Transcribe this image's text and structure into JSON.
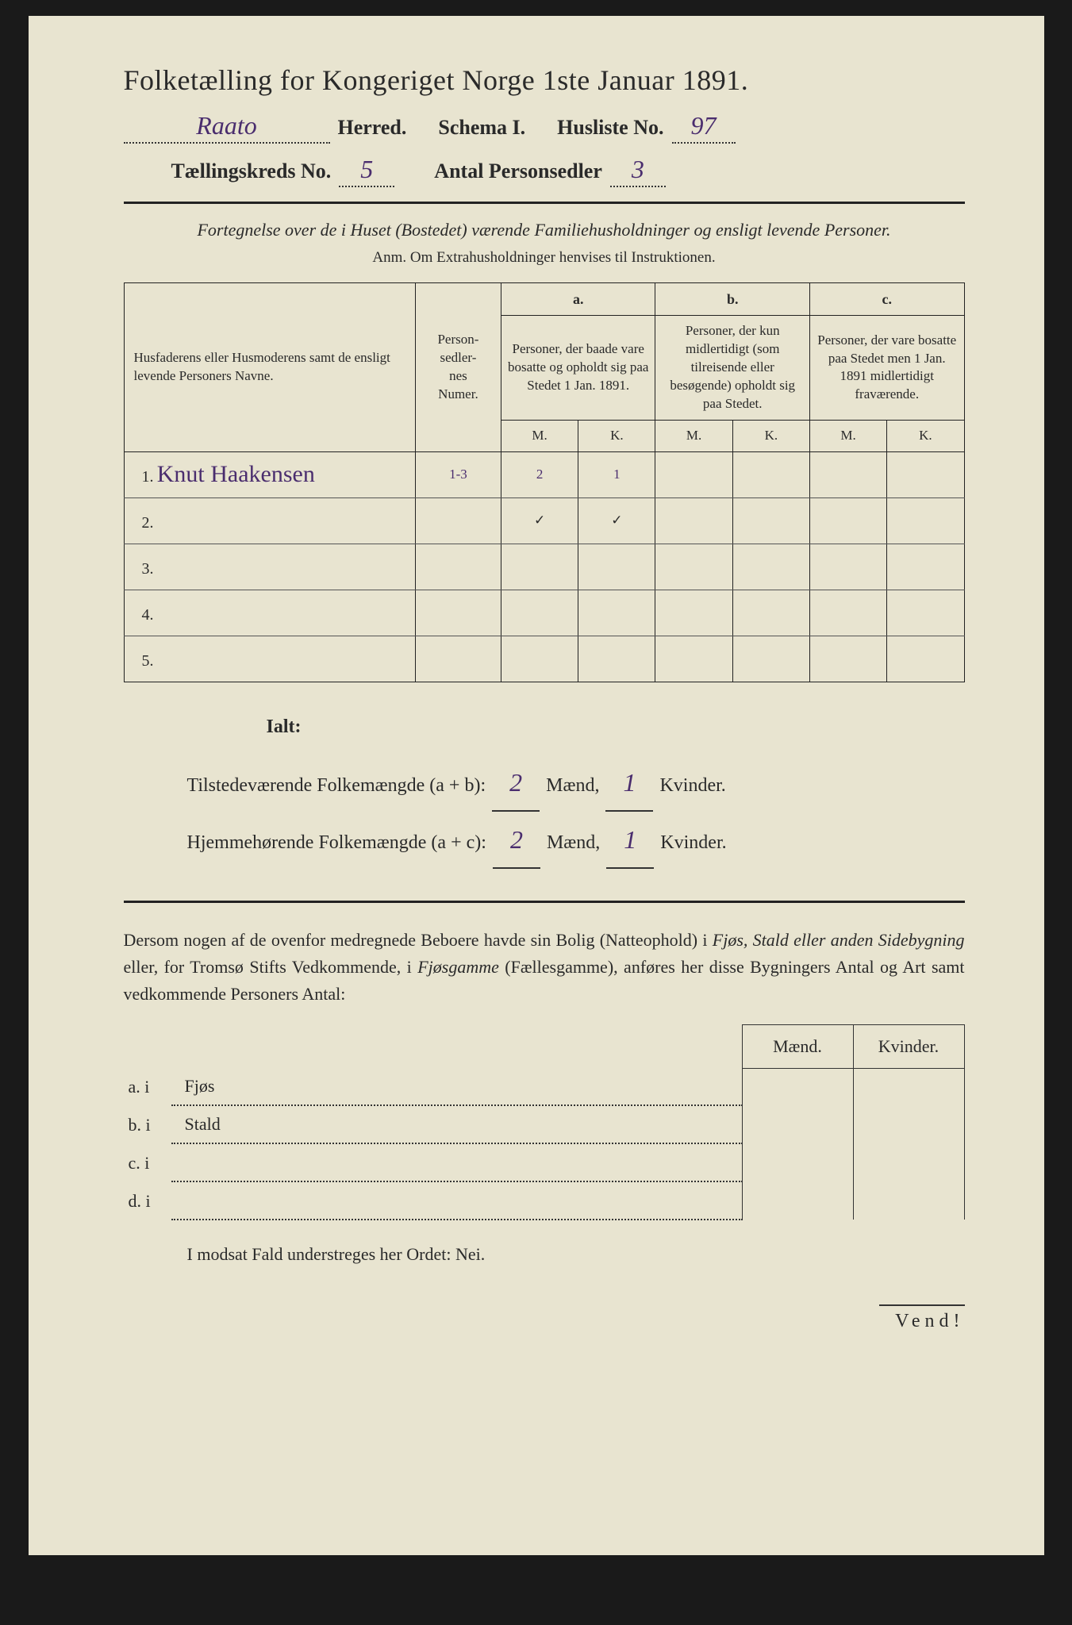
{
  "title": "Folketælling for Kongeriget Norge 1ste Januar 1891.",
  "header": {
    "herred_value": "Raato",
    "herred_label": "Herred.",
    "schema_label": "Schema I.",
    "husliste_prefix": "Husliste No.",
    "husliste_value": "97",
    "kreds_prefix": "Tællingskreds No.",
    "kreds_value": "5",
    "antal_prefix": "Antal Personsedler",
    "antal_value": "3"
  },
  "subtitle": "Fortegnelse over de i Huset (Bostedet) værende Familiehusholdninger og ensligt levende Personer.",
  "anm": "Anm. Om Extrahusholdninger henvises til Instruktionen.",
  "table": {
    "head": {
      "names": "Husfaderens eller Husmoderens samt de ensligt levende Personers Navne.",
      "personsedler": "Person-\nsedler-\nnes\nNumer.",
      "col_a_label": "a.",
      "col_a": "Personer, der baade vare bosatte og opholdt sig paa Stedet 1 Jan. 1891.",
      "col_b_label": "b.",
      "col_b": "Personer, der kun midlertidigt (som tilreisende eller besøgende) opholdt sig paa Stedet.",
      "col_c_label": "c.",
      "col_c": "Personer, der vare bosatte paa Stedet men 1 Jan. 1891 midlertidigt fraværende.",
      "M": "M.",
      "K": "K."
    },
    "rows": [
      {
        "n": "1.",
        "name": "Knut Haakensen",
        "num": "1-3",
        "aM": "2",
        "aK": "1",
        "bM": "",
        "bK": "",
        "cM": "",
        "cK": ""
      },
      {
        "n": "2.",
        "name": "",
        "num": "",
        "aM": "✓",
        "aK": "✓",
        "bM": "",
        "bK": "",
        "cM": "",
        "cK": ""
      },
      {
        "n": "3.",
        "name": "",
        "num": "",
        "aM": "",
        "aK": "",
        "bM": "",
        "bK": "",
        "cM": "",
        "cK": ""
      },
      {
        "n": "4.",
        "name": "",
        "num": "",
        "aM": "",
        "aK": "",
        "bM": "",
        "bK": "",
        "cM": "",
        "cK": ""
      },
      {
        "n": "5.",
        "name": "",
        "num": "",
        "aM": "",
        "aK": "",
        "bM": "",
        "bK": "",
        "cM": "",
        "cK": ""
      }
    ]
  },
  "totals": {
    "ialt": "Ialt:",
    "row1_label": "Tilstedeværende Folkemængde (a + b):",
    "row1_m": "2",
    "row1_k": "1",
    "row2_label": "Hjemmehørende Folkemængde (a + c):",
    "row2_m": "2",
    "row2_k": "1",
    "maend": "Mænd,",
    "kvinder": "Kvinder."
  },
  "para": "Dersom nogen af de ovenfor medregnede Beboere havde sin Bolig (Natteophold) i Fjøs, Stald eller anden Sidebygning eller, for Tromsø Stifts Vedkommende, i Fjøsgamme (Fællesgamme), anføres her disse Bygningers Antal og Art samt vedkommende Personers Antal:",
  "bottom": {
    "maend": "Mænd.",
    "kvinder": "Kvinder.",
    "rows": [
      {
        "label": "a.  i",
        "name": "Fjøs"
      },
      {
        "label": "b.  i",
        "name": "Stald"
      },
      {
        "label": "c.  i",
        "name": ""
      },
      {
        "label": "d.  i",
        "name": ""
      }
    ]
  },
  "nei": "I modsat Fald understreges her Ordet: Nei.",
  "vend": "Vend!"
}
